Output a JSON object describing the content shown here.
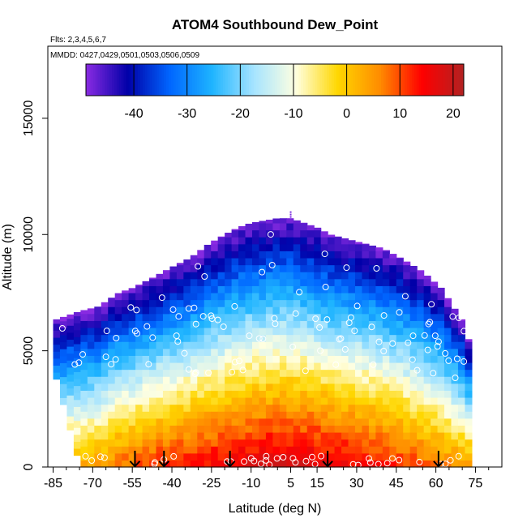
{
  "chart_data": {
    "type": "heatmap",
    "title": "ATOM4 Southbound Dew_Point",
    "flights_note": "Flts: 2,3,4,5,6,7",
    "dates_note": "MMDD: 0427,0429,0501,0503,0506,0509",
    "xlabel": "Latitude (deg N)",
    "ylabel": "Altitude (m)",
    "xlim": [
      -87,
      85
    ],
    "ylim": [
      0,
      18100
    ],
    "x_ticks": [
      -85,
      -70,
      -55,
      -40,
      -25,
      -10,
      5,
      15,
      30,
      45,
      60,
      75
    ],
    "y_ticks": [
      0,
      5000,
      10000,
      15000
    ],
    "colorbar": {
      "range": [
        -49,
        22
      ],
      "ticks": [
        -40,
        -30,
        -20,
        -10,
        0,
        10,
        20
      ],
      "colors": [
        "#8a2be2",
        "#0000a8",
        "#0066ff",
        "#1eb4ff",
        "#a6e4ff",
        "#ffffe0",
        "#ffd700",
        "#ff8c00",
        "#ff0000",
        "#b22222"
      ]
    },
    "altitude_profile": {
      "latitude": [
        -85,
        -75,
        -68,
        -60,
        -55,
        -48,
        -40,
        -33,
        -26,
        -20,
        -15,
        -10,
        -5,
        0,
        5,
        10,
        15,
        20,
        30,
        40,
        48,
        55,
        62,
        66,
        70,
        72
      ],
      "top_altitude": [
        6300,
        6700,
        6900,
        7500,
        7700,
        8100,
        8600,
        9000,
        9600,
        10000,
        10300,
        10500,
        10600,
        10700,
        10700,
        10500,
        10300,
        10000,
        9700,
        9400,
        8900,
        8400,
        7700,
        7000,
        6300,
        5500
      ]
    },
    "surface_dewpoint_by_latitude": {
      "latitude": [
        -75,
        -60,
        -45,
        -30,
        -15,
        0,
        15,
        30,
        45,
        60,
        70
      ],
      "dewpoint": [
        2,
        8,
        12,
        14,
        16,
        18,
        17,
        15,
        12,
        8,
        5
      ]
    },
    "sounding_markers_latitude": [
      -54,
      -43,
      -18,
      19,
      61
    ]
  }
}
